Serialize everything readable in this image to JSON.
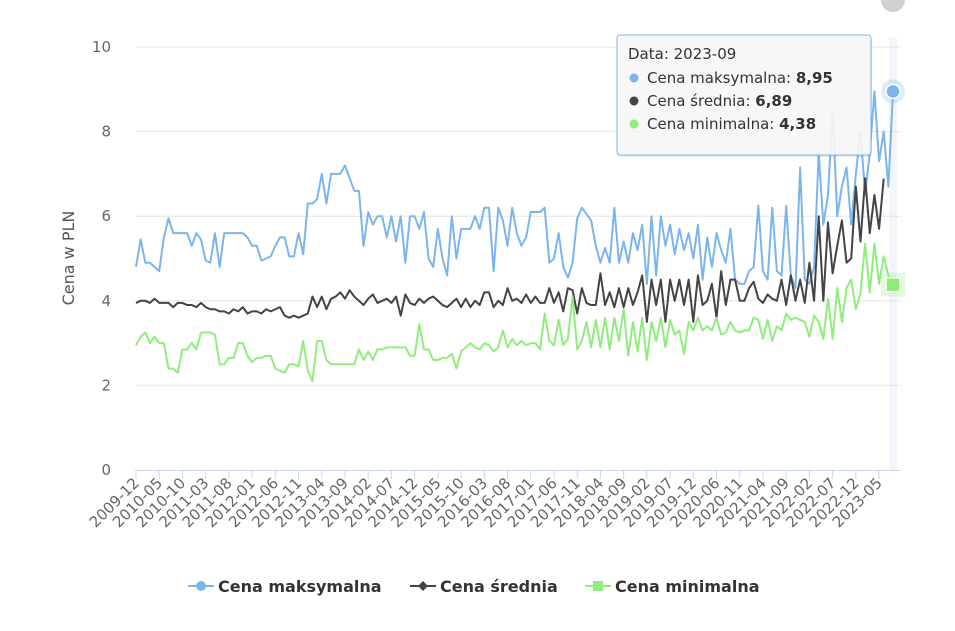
{
  "chart_data": {
    "type": "line",
    "title": "",
    "xlabel": "",
    "ylabel": "Cena w PLN",
    "ylim": [
      0,
      10
    ],
    "yticks": [
      "0",
      "2",
      "4",
      "6",
      "8",
      "10"
    ],
    "x_tick_labels": [
      "2009-12",
      "2010-05",
      "2010-10",
      "2011-03",
      "2011-08",
      "2012-01",
      "2012-06",
      "2012-11",
      "2013-04",
      "2013-09",
      "2014-02",
      "2014-07",
      "2014-12",
      "2015-05",
      "2015-10",
      "2016-03",
      "2016-08",
      "2017-01",
      "2017-06",
      "2017-11",
      "2018-04",
      "2018-09",
      "2019-02",
      "2019-07",
      "2019-12",
      "2020-06",
      "2020-11",
      "2021-04",
      "2021-09",
      "2022-02",
      "2022-07",
      "2022-12",
      "2023-05"
    ],
    "legend": [
      "Cena maksymalna",
      "Cena średnia",
      "Cena minimalna"
    ],
    "series": [
      {
        "name": "Cena maksymalna",
        "color": "#7cb5ec",
        "marker": "circle",
        "values": [
          4.8,
          5.45,
          4.9,
          4.9,
          4.8,
          4.7,
          5.5,
          5.95,
          5.6,
          5.6,
          5.6,
          5.6,
          5.3,
          5.6,
          5.45,
          4.95,
          4.9,
          5.6,
          4.8,
          5.6,
          5.6,
          5.6,
          5.6,
          5.6,
          5.5,
          5.3,
          5.3,
          4.95,
          5.0,
          5.05,
          5.3,
          5.5,
          5.5,
          5.05,
          5.05,
          5.6,
          5.1,
          6.3,
          6.3,
          6.4,
          7.0,
          6.3,
          7.0,
          7.0,
          7.0,
          7.2,
          6.9,
          6.6,
          6.6,
          5.3,
          6.1,
          5.8,
          6.0,
          6.0,
          5.5,
          6.0,
          5.4,
          6.0,
          4.9,
          6.0,
          6.0,
          5.7,
          6.1,
          5.0,
          4.8,
          5.7,
          5.0,
          4.6,
          6.0,
          5.0,
          5.7,
          5.7,
          5.7,
          6.0,
          5.7,
          6.2,
          6.2,
          4.7,
          6.2,
          5.9,
          5.3,
          6.2,
          5.6,
          5.3,
          5.5,
          6.1,
          6.1,
          6.1,
          6.2,
          4.9,
          5.0,
          5.6,
          4.8,
          4.55,
          4.9,
          5.95,
          6.2,
          6.05,
          5.9,
          5.3,
          4.9,
          5.25,
          4.9,
          6.2,
          4.9,
          5.4,
          4.9,
          5.6,
          5.2,
          5.8,
          4.4,
          6.0,
          4.6,
          6.0,
          5.3,
          5.8,
          5.1,
          5.7,
          5.2,
          5.6,
          5.0,
          5.8,
          4.5,
          5.5,
          4.8,
          5.6,
          5.2,
          4.9,
          5.7,
          4.5,
          4.4,
          4.4,
          4.7,
          4.8,
          6.25,
          4.7,
          4.5,
          6.2,
          4.7,
          4.6,
          6.25,
          4.6,
          4.3,
          7.15,
          4.5,
          4.4,
          4.8,
          7.5,
          5.8,
          6.5,
          8.5,
          6.0,
          6.7,
          7.15,
          5.8,
          7.0,
          8.0,
          6.5,
          7.5,
          8.95,
          7.3,
          8.0,
          6.7,
          8.95
        ]
      },
      {
        "name": "Cena średnia",
        "color": "#434348",
        "marker": "diamond",
        "values": [
          3.95,
          4.0,
          4.0,
          3.95,
          4.05,
          3.95,
          3.95,
          3.95,
          3.85,
          3.95,
          3.95,
          3.9,
          3.9,
          3.85,
          3.95,
          3.85,
          3.8,
          3.8,
          3.75,
          3.75,
          3.7,
          3.8,
          3.75,
          3.85,
          3.7,
          3.75,
          3.75,
          3.7,
          3.8,
          3.75,
          3.8,
          3.85,
          3.65,
          3.6,
          3.65,
          3.6,
          3.65,
          3.7,
          4.1,
          3.85,
          4.1,
          3.8,
          4.05,
          4.1,
          4.2,
          4.05,
          4.25,
          4.1,
          4.0,
          3.9,
          4.05,
          4.15,
          3.95,
          4.0,
          4.05,
          3.95,
          4.1,
          3.65,
          4.15,
          3.95,
          3.9,
          4.05,
          3.95,
          4.05,
          4.1,
          4.0,
          3.9,
          3.85,
          3.95,
          4.05,
          3.85,
          4.05,
          3.85,
          4.0,
          3.9,
          4.2,
          4.2,
          3.85,
          4.0,
          3.9,
          4.3,
          4.0,
          4.05,
          3.95,
          4.15,
          3.95,
          4.1,
          3.95,
          3.95,
          4.3,
          3.95,
          4.2,
          3.75,
          4.3,
          4.25,
          3.7,
          4.3,
          3.95,
          3.9,
          3.9,
          4.65,
          3.9,
          4.2,
          3.85,
          4.3,
          3.85,
          4.3,
          3.9,
          4.2,
          4.6,
          3.5,
          4.5,
          3.9,
          4.5,
          3.5,
          4.5,
          4.0,
          4.5,
          3.9,
          4.5,
          3.5,
          4.6,
          3.9,
          4.0,
          4.4,
          3.6,
          4.7,
          3.9,
          4.5,
          4.5,
          4.0,
          4.0,
          4.3,
          4.45,
          4.05,
          3.95,
          4.15,
          4.05,
          4.0,
          4.5,
          3.9,
          4.6,
          4.0,
          4.5,
          3.95,
          4.9,
          4.0,
          6.0,
          4.0,
          5.85,
          4.65,
          5.3,
          5.9,
          4.9,
          5.0,
          6.7,
          5.4,
          6.9,
          5.6,
          6.5,
          5.7,
          6.89
        ]
      },
      {
        "name": "Cena minimalna",
        "color": "#90ed7d",
        "marker": "square",
        "values": [
          2.95,
          3.15,
          3.25,
          3.0,
          3.15,
          3.0,
          3.0,
          2.4,
          2.4,
          2.3,
          2.85,
          2.85,
          3.0,
          2.85,
          3.25,
          3.25,
          3.25,
          3.2,
          2.5,
          2.5,
          2.65,
          2.65,
          3.0,
          3.0,
          2.7,
          2.55,
          2.65,
          2.65,
          2.7,
          2.7,
          2.4,
          2.35,
          2.3,
          2.5,
          2.5,
          2.45,
          3.05,
          2.35,
          2.1,
          3.05,
          3.05,
          2.6,
          2.5,
          2.5,
          2.5,
          2.5,
          2.5,
          2.5,
          2.85,
          2.6,
          2.8,
          2.6,
          2.85,
          2.85,
          2.9,
          2.9,
          2.9,
          2.9,
          2.9,
          2.7,
          2.7,
          3.45,
          2.85,
          2.85,
          2.6,
          2.6,
          2.65,
          2.65,
          2.75,
          2.4,
          2.8,
          2.9,
          3.0,
          2.9,
          2.85,
          3.0,
          2.95,
          2.8,
          2.9,
          3.3,
          2.9,
          3.1,
          2.95,
          3.05,
          2.95,
          3.0,
          3.0,
          2.85,
          3.7,
          3.05,
          2.95,
          3.55,
          2.95,
          3.1,
          4.1,
          2.85,
          3.05,
          3.5,
          2.9,
          3.55,
          2.9,
          3.6,
          2.85,
          3.6,
          3.05,
          3.8,
          2.7,
          3.5,
          2.8,
          3.6,
          2.6,
          3.5,
          3.05,
          3.6,
          2.9,
          3.55,
          3.2,
          3.3,
          2.75,
          3.5,
          3.3,
          3.6,
          3.3,
          3.4,
          3.3,
          3.6,
          3.2,
          3.25,
          3.5,
          3.3,
          3.25,
          3.3,
          3.3,
          3.6,
          3.55,
          3.1,
          3.55,
          3.05,
          3.4,
          3.3,
          3.7,
          3.55,
          3.6,
          3.55,
          3.5,
          3.15,
          3.65,
          3.5,
          3.1,
          4.05,
          3.1,
          4.3,
          3.5,
          4.3,
          4.5,
          3.8,
          4.2,
          5.35,
          4.2,
          5.35,
          4.4,
          5.05,
          4.6,
          4.38
        ]
      }
    ],
    "tooltip": {
      "title": "Data: 2023-09",
      "rows": [
        {
          "label": "Cena maksymalna:",
          "value": "8,95",
          "color": "#7cb5ec"
        },
        {
          "label": "Cena średnia:",
          "value": "6,89",
          "color": "#434348"
        },
        {
          "label": "Cena minimalna:",
          "value": "4,38",
          "color": "#90ed7d"
        }
      ]
    }
  }
}
